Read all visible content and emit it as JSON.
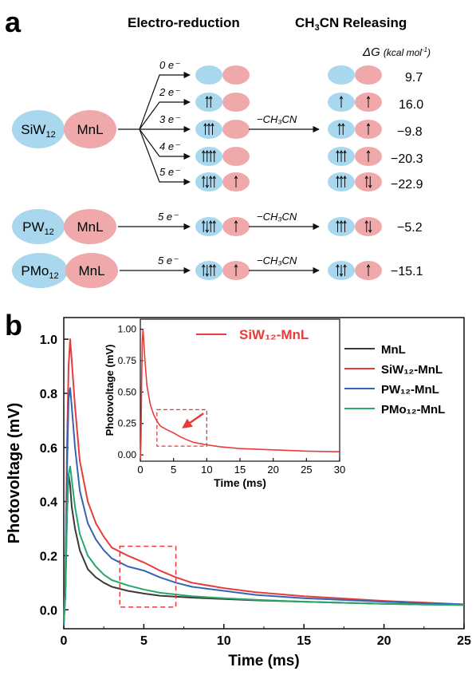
{
  "panel_a": {
    "letter": "a",
    "header_left": "Electro-reduction",
    "header_right_main": "CH",
    "header_right_sub": "3",
    "header_right_tail": "CN Releasing",
    "dg_symbol": "ΔG",
    "dg_unit": "(kcal mol",
    "dg_unit_sup": "-1",
    "dg_unit_close": ")",
    "siw12": {
      "base": "SiW",
      "sub": "12"
    },
    "pw12": {
      "base": "PW",
      "sub": "12"
    },
    "pmo12": {
      "base": "PMo",
      "sub": "12"
    },
    "mnl": "MnL",
    "branches": [
      "0 e⁻",
      "2 e⁻",
      "3 e⁻",
      "4 e⁻",
      "5 e⁻"
    ],
    "electron_label": "5 e⁻",
    "release_label": "−CH₃CN",
    "dg_values": [
      "9.7",
      "16.0",
      "−9.8",
      "−20.3",
      "−22.9",
      "−5.2",
      "−15.1"
    ],
    "colors": {
      "blue": "#a9d7ee",
      "pink": "#f0a9aa"
    }
  },
  "chart_data": [
    {
      "type": "line",
      "panel": "b",
      "xlabel": "Time (ms)",
      "ylabel": "Photovoltage (mV)",
      "xlim": [
        0,
        25
      ],
      "ylim": [
        -0.07,
        1.08
      ],
      "xticks": [
        "0",
        "5",
        "10",
        "15",
        "20",
        "25"
      ],
      "yticks": [
        "0.0",
        "0.2",
        "0.4",
        "0.6",
        "0.8",
        "1.0"
      ],
      "legend_position": "top-right",
      "series": [
        {
          "name": "MnL",
          "color": "#3a3a3a",
          "x": [
            0,
            0.1,
            0.2,
            0.3,
            0.4,
            0.5,
            0.7,
            1,
            1.5,
            2,
            2.5,
            3,
            4,
            5,
            6,
            8,
            10,
            12,
            15,
            18,
            20,
            22,
            25
          ],
          "y": [
            -0.04,
            0.05,
            0.35,
            0.5,
            0.46,
            0.38,
            0.3,
            0.22,
            0.15,
            0.12,
            0.1,
            0.085,
            0.07,
            0.06,
            0.052,
            0.045,
            0.04,
            0.035,
            0.03,
            0.025,
            0.022,
            0.02,
            0.018
          ]
        },
        {
          "name": "SiW₁₂-MnL",
          "color": "#e63c3c",
          "x": [
            0,
            0.1,
            0.2,
            0.3,
            0.4,
            0.5,
            0.7,
            1,
            1.5,
            2,
            2.5,
            3,
            4,
            5,
            6,
            7,
            8,
            10,
            12,
            15,
            18,
            20,
            22,
            25
          ],
          "y": [
            -0.05,
            0.1,
            0.6,
            0.9,
            1.0,
            0.92,
            0.75,
            0.55,
            0.4,
            0.32,
            0.27,
            0.23,
            0.2,
            0.175,
            0.145,
            0.12,
            0.1,
            0.08,
            0.065,
            0.05,
            0.04,
            0.033,
            0.028,
            0.02
          ]
        },
        {
          "name": "PW₁₂-MnL",
          "color": "#3464b4",
          "x": [
            0,
            0.1,
            0.2,
            0.3,
            0.4,
            0.5,
            0.7,
            1,
            1.5,
            2,
            2.5,
            3,
            4,
            5,
            6,
            7,
            8,
            10,
            12,
            15,
            18,
            20,
            22,
            25
          ],
          "y": [
            -0.06,
            0.08,
            0.5,
            0.78,
            0.82,
            0.75,
            0.6,
            0.44,
            0.32,
            0.26,
            0.22,
            0.19,
            0.16,
            0.145,
            0.12,
            0.1,
            0.085,
            0.07,
            0.055,
            0.043,
            0.035,
            0.03,
            0.025,
            0.02
          ]
        },
        {
          "name": "PMo₁₂-MnL",
          "color": "#27a86a",
          "x": [
            0,
            0.1,
            0.2,
            0.3,
            0.4,
            0.5,
            0.7,
            1,
            1.5,
            2,
            2.5,
            3,
            4,
            5,
            6,
            8,
            10,
            12,
            15,
            18,
            20,
            22,
            25
          ],
          "y": [
            -0.05,
            0.06,
            0.35,
            0.5,
            0.53,
            0.48,
            0.38,
            0.28,
            0.2,
            0.16,
            0.13,
            0.11,
            0.09,
            0.075,
            0.063,
            0.05,
            0.043,
            0.037,
            0.03,
            0.025,
            0.022,
            0.02,
            0.018
          ]
        }
      ],
      "annotation": "dashed red box highlighting 3.5–7 ms region"
    },
    {
      "type": "line",
      "panel": "b-inset",
      "title": "SiW₁₂-MnL",
      "xlabel": "Time (ms)",
      "ylabel": "Photovoltage (mV)",
      "xlim": [
        0,
        30
      ],
      "ylim": [
        -0.05,
        1.08
      ],
      "xticks": [
        "0",
        "5",
        "10",
        "15",
        "20",
        "25",
        "30"
      ],
      "yticks": [
        "0.00",
        "0.25",
        "0.50",
        "0.75",
        "1.00"
      ],
      "series": [
        {
          "name": "SiW₁₂-MnL",
          "color": "#e63c3c",
          "x": [
            0,
            0.1,
            0.2,
            0.3,
            0.4,
            0.5,
            0.7,
            1,
            1.5,
            2,
            2.5,
            3,
            4,
            5,
            6,
            7,
            8,
            10,
            12,
            15,
            20,
            25,
            30
          ],
          "y": [
            -0.03,
            0.1,
            0.6,
            0.9,
            1.0,
            0.92,
            0.75,
            0.55,
            0.4,
            0.32,
            0.27,
            0.23,
            0.2,
            0.175,
            0.145,
            0.12,
            0.1,
            0.08,
            0.065,
            0.05,
            0.04,
            0.03,
            0.025
          ]
        }
      ]
    }
  ]
}
